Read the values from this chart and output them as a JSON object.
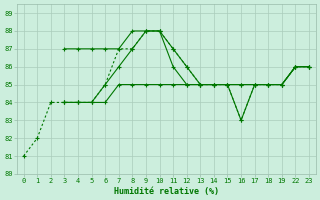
{
  "xlabel": "Humidité relative (%)",
  "background_color": "#cceedd",
  "grid_color": "#aaccbb",
  "line_color": "#007700",
  "xlim": [
    -0.5,
    21.5
  ],
  "ylim": [
    80,
    89.5
  ],
  "yticks": [
    80,
    81,
    82,
    83,
    84,
    85,
    86,
    87,
    88,
    89
  ],
  "xtick_positions": [
    0,
    1,
    2,
    3,
    4,
    5,
    6,
    7,
    8,
    9,
    10,
    11,
    12,
    13,
    14,
    15,
    16,
    17,
    18,
    19,
    20,
    21
  ],
  "xtick_labels": [
    "0",
    "1",
    "2",
    "3",
    "4",
    "5",
    "6",
    "7",
    "8",
    "9",
    "10",
    "11",
    "12",
    "13",
    "14",
    "15",
    "16",
    "17",
    "18",
    "19",
    "22",
    "23"
  ],
  "lines": [
    {
      "xi": [
        0,
        1,
        2,
        3,
        4,
        5,
        6,
        7,
        8,
        9,
        10,
        11,
        12,
        13,
        14,
        15,
        16,
        17,
        18,
        19,
        20,
        21
      ],
      "y": [
        81,
        82,
        84,
        84,
        84,
        84,
        85,
        87,
        87,
        88,
        88,
        87,
        86,
        85,
        85,
        85,
        83,
        85,
        85,
        85,
        86,
        86
      ],
      "style": "dotted",
      "marker": "+"
    },
    {
      "xi": [
        3,
        4,
        5,
        6,
        7,
        8,
        9,
        10,
        11,
        12,
        13,
        14,
        15,
        16,
        17,
        18,
        19,
        20,
        21
      ],
      "y": [
        87,
        87,
        87,
        87,
        87,
        88,
        88,
        88,
        87,
        86,
        85,
        85,
        85,
        85,
        85,
        85,
        85,
        86,
        86
      ],
      "style": "solid",
      "marker": "+"
    },
    {
      "xi": [
        3,
        4,
        5,
        6,
        7,
        8,
        9,
        10,
        11,
        12,
        13,
        14,
        15,
        16,
        17,
        18,
        19,
        20,
        21
      ],
      "y": [
        84,
        84,
        84,
        85,
        86,
        87,
        88,
        88,
        86,
        85,
        85,
        85,
        85,
        83,
        85,
        85,
        85,
        86,
        86
      ],
      "style": "solid",
      "marker": "+"
    },
    {
      "xi": [
        3,
        4,
        5,
        6,
        7,
        8,
        9,
        10,
        11,
        12,
        13,
        14,
        15,
        16,
        17,
        18,
        19,
        20,
        21
      ],
      "y": [
        84,
        84,
        84,
        84,
        85,
        85,
        85,
        85,
        85,
        85,
        85,
        85,
        85,
        85,
        85,
        85,
        85,
        86,
        86
      ],
      "style": "solid",
      "marker": "+"
    }
  ]
}
